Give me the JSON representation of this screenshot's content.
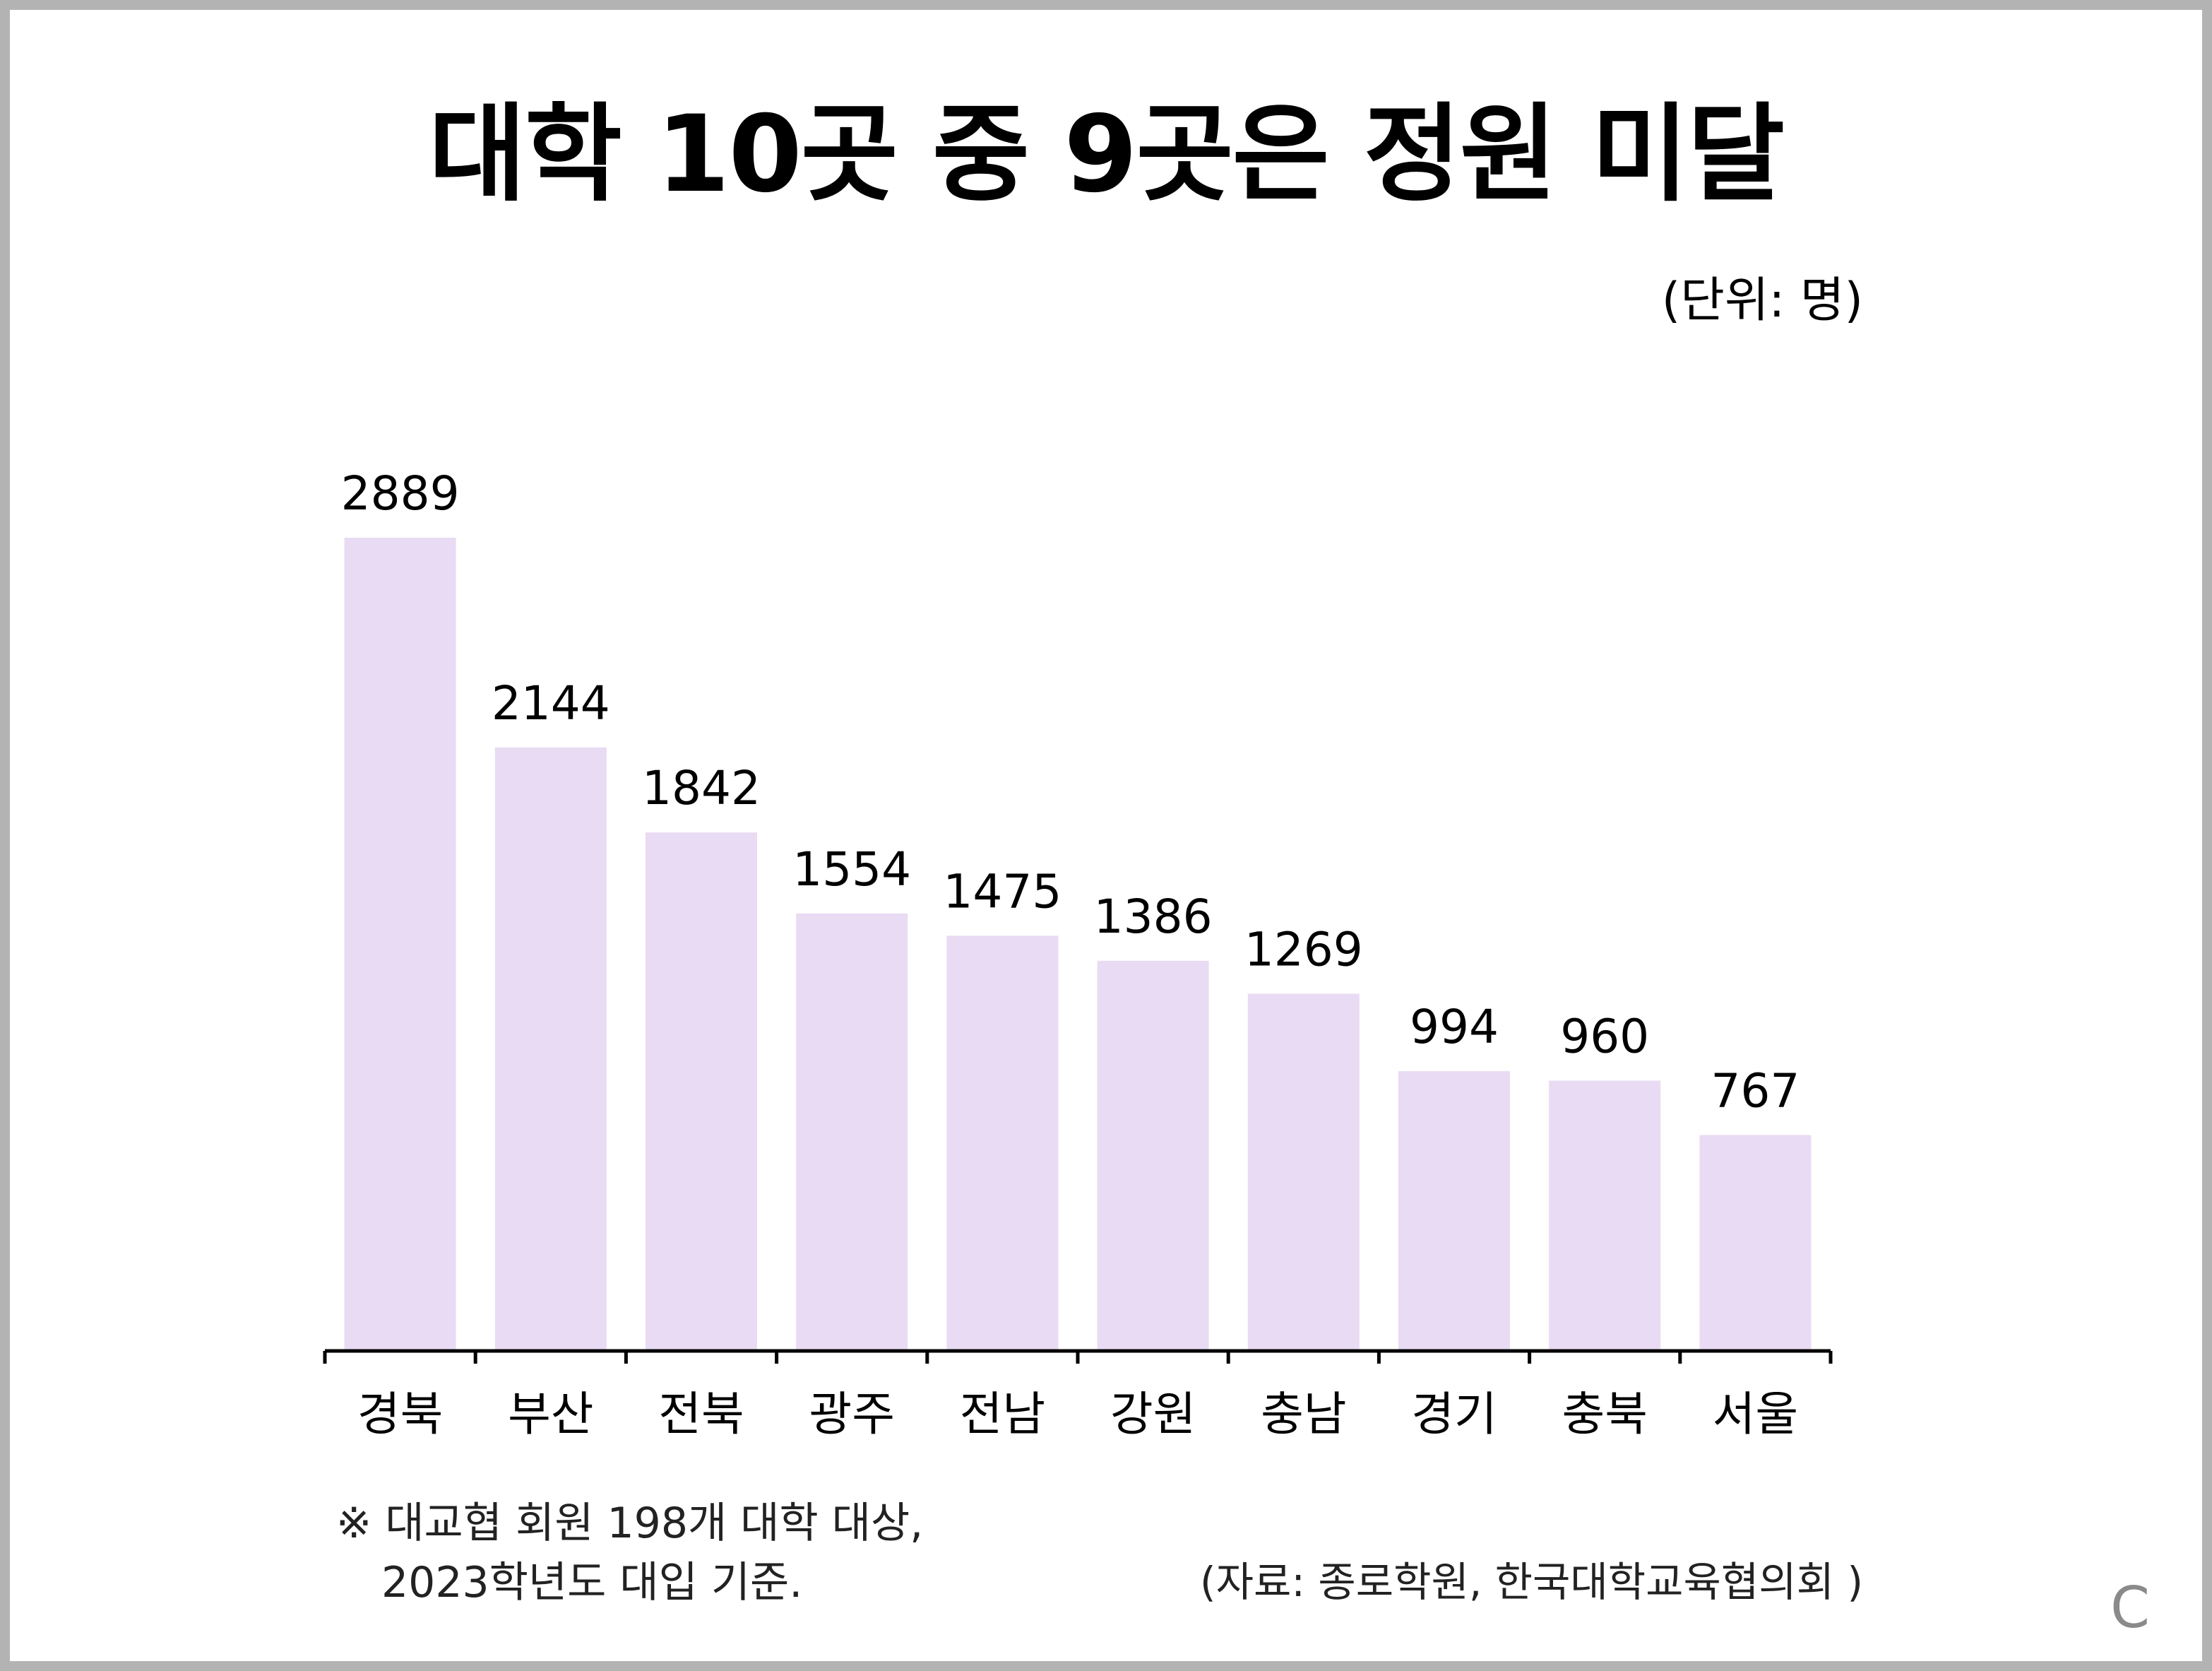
{
  "chart_data": {
    "type": "bar",
    "title": "대학 10곳 중 9곳은 정원 미달",
    "unit_label": "(단위: 명)",
    "categories": [
      "경북",
      "부산",
      "전북",
      "광주",
      "전남",
      "강원",
      "충남",
      "경기",
      "충북",
      "서울"
    ],
    "values": [
      2889,
      2144,
      1842,
      1554,
      1475,
      1386,
      1269,
      994,
      960,
      767
    ],
    "bar_color": "#e9dbf3",
    "axis_color": "#000000",
    "grid": false,
    "legend": "none",
    "ylim": [
      0,
      2889
    ]
  },
  "footnote": {
    "line1": "※ 대교협 회원 198개 대학 대상,",
    "line2": "2023학년도 대입 기준."
  },
  "source": "(자료: 종로학원, 한국대학교육협의회 )",
  "corner_mark": "C"
}
